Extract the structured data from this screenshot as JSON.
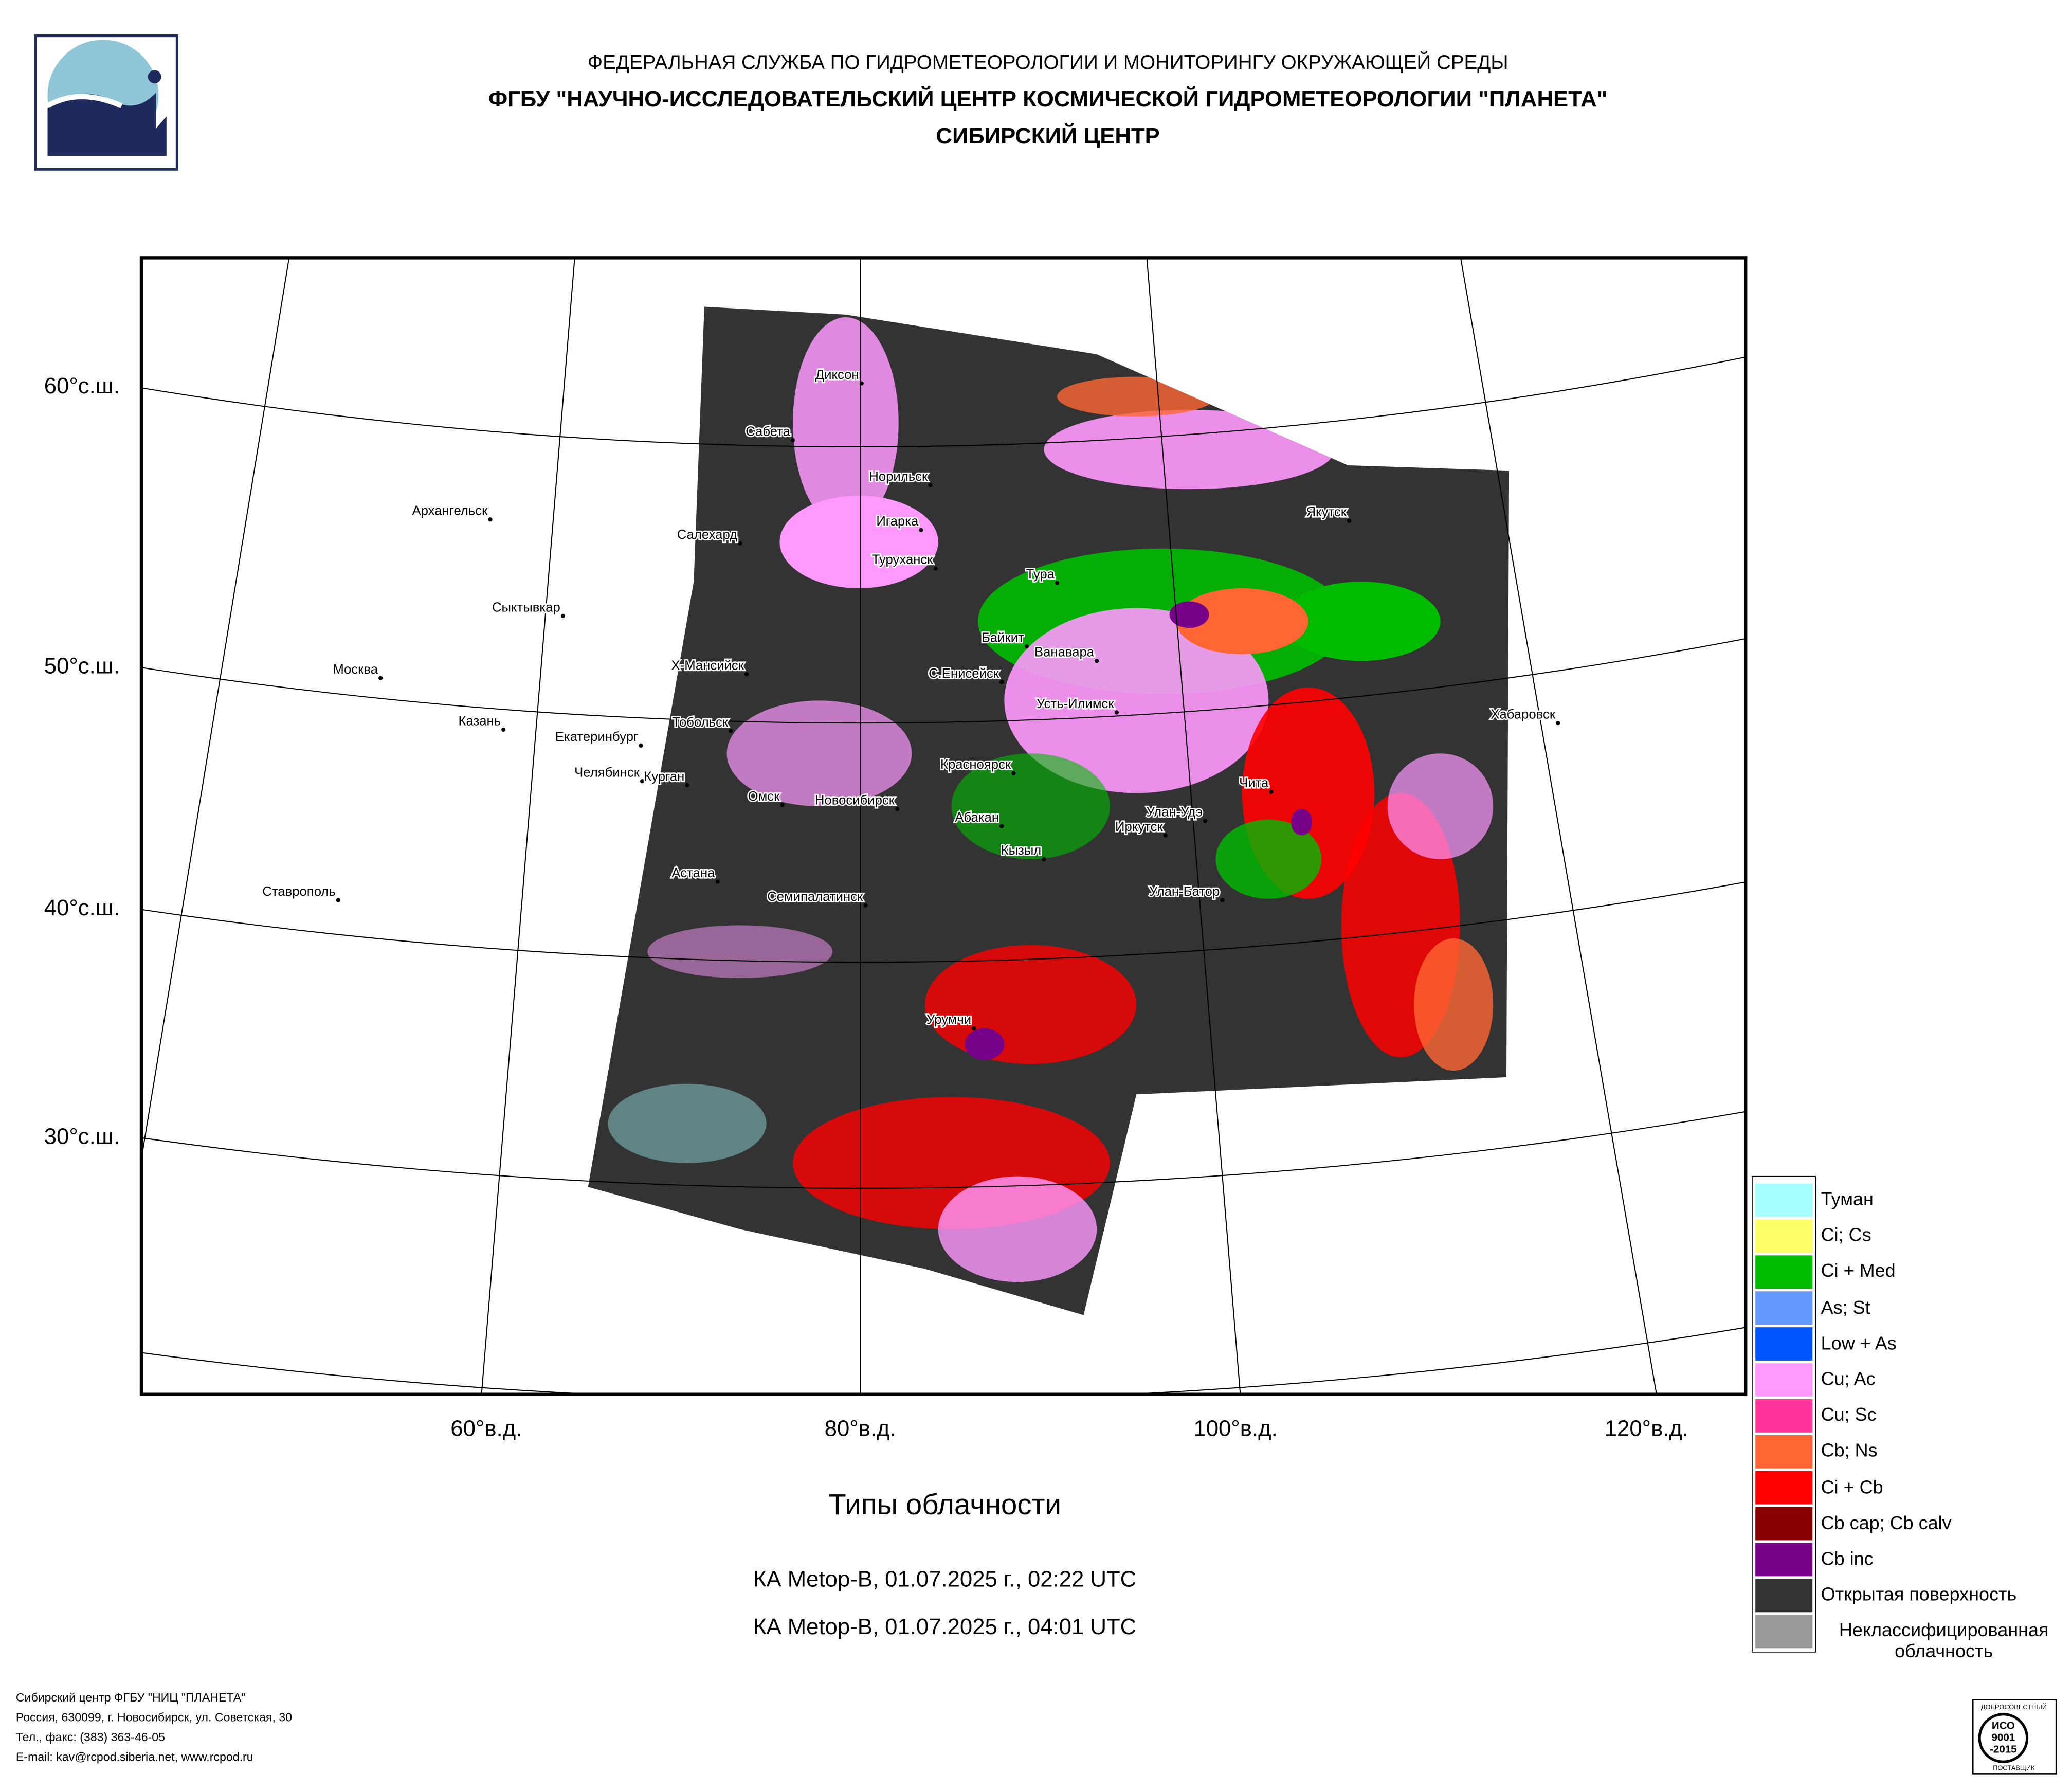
{
  "header": {
    "line1": "ФЕДЕРАЛЬНАЯ СЛУЖБА ПО ГИДРОМЕТЕОРОЛОГИИ И МОНИТОРИНГУ ОКРУЖАЮЩЕЙ СРЕДЫ",
    "line2": "ФГБУ \"НАУЧНО-ИССЛЕДОВАТЕЛЬСКИЙ ЦЕНТР КОСМИЧЕСКОЙ ГИДРОМЕТЕОРОЛОГИИ \"ПЛАНЕТА\"",
    "line3": "СИБИРСКИЙ ЦЕНТР"
  },
  "map": {
    "lat_labels": [
      "60°с.ш.",
      "50°с.ш.",
      "40°с.ш.",
      "30°с.ш."
    ],
    "lon_labels": [
      "60°в.д.",
      "80°в.д.",
      "100°в.д.",
      "120°в.д."
    ],
    "cities": [
      "Диксон",
      "Сабета",
      "Норильск",
      "Игарка",
      "Туруханск",
      "Архангельск",
      "Салехард",
      "Сыктывкар",
      "Тура",
      "Байкит",
      "Ванавара",
      "Москва",
      "Х-Мансийск",
      "С.Енисейск",
      "Усть-Илимск",
      "Казань",
      "Тобольск",
      "Екатеринбург",
      "Хабаровск",
      "Челябинск",
      "Курган",
      "Омск",
      "Красноярск",
      "Чита",
      "Новосибирск",
      "Абакан",
      "Улан-Удэ",
      "Иркутск",
      "Кызыл",
      "Астана",
      "Семипалатинск",
      "Улан-Батор",
      "Ставрополь",
      "Урумчи",
      "Якутск"
    ],
    "title": "Типы облачности",
    "passes": [
      "КА Metop-B, 01.07.2025 г., 02:22 UTC",
      "КА Metop-B, 01.07.2025 г., 04:01 UTC"
    ],
    "legend": [
      {
        "label": "Туман",
        "color": "#a6ffff"
      },
      {
        "label": "Ci; Cs",
        "color": "#ffff66"
      },
      {
        "label": "Ci + Med",
        "color": "#00bb00"
      },
      {
        "label": "As; St",
        "color": "#6699ff"
      },
      {
        "label": "Low + As",
        "color": "#0055ff"
      },
      {
        "label": "Cu; Ac",
        "color": "#ff99ff"
      },
      {
        "label": "Cu; Sc",
        "color": "#ff3399"
      },
      {
        "label": "Cb; Ns",
        "color": "#ff6633"
      },
      {
        "label": "Ci + Cb",
        "color": "#ff0000"
      },
      {
        "label": "Cb cap; Cb calv",
        "color": "#880000"
      },
      {
        "label": "Cb inc",
        "color": "#770088"
      },
      {
        "label": "Открытая поверхность",
        "color": "#333333"
      },
      {
        "label": "Неклассифицированная облачность",
        "color": "#999999"
      }
    ]
  },
  "footer": [
    "Сибирский центр ФГБУ \"НИЦ \"ПЛАНЕТА\"",
    "Россия, 630099, г. Новосибирск, ул. Советская, 30",
    "Тел., факс: (383) 363-46-05",
    "E-mail: kav@rcpod.siberia.net, www.rcpod.ru"
  ],
  "iso_badge": {
    "top": "ДОБРОСОВЕСТНЫЙ",
    "center": [
      "ИСО",
      "9001",
      "-2015"
    ],
    "bottom": "ПОСТАВЩИК"
  }
}
